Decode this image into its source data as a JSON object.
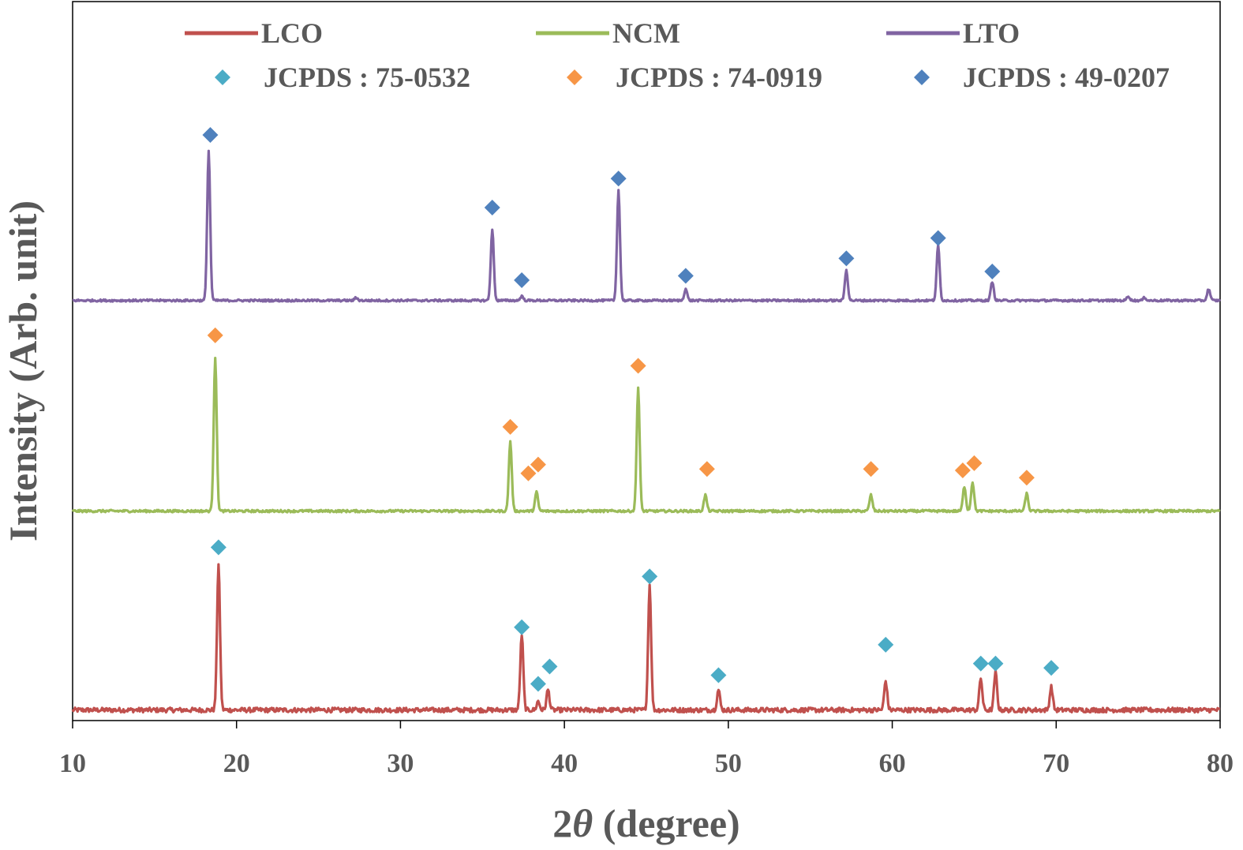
{
  "chart_data": {
    "type": "line",
    "xlabel_prefix": "2",
    "xlabel_symbol": "θ",
    "xlabel_suffix": " (degree)",
    "ylabel": "Intensity (Arb. unit)",
    "xlim": [
      10,
      80
    ],
    "x_ticks": [
      10,
      20,
      30,
      40,
      50,
      60,
      70,
      80
    ],
    "y_ticks_shown": false,
    "grid": false,
    "legend_position": "top",
    "intensity_units": "relative, stacked with vertical offset",
    "series": [
      {
        "name": "LCO",
        "color": "#c0504d",
        "offset": 0,
        "baseline": 4,
        "noise": 1.6,
        "peaks": [
          {
            "x": 18.9,
            "h": 100
          },
          {
            "x": 37.4,
            "h": 52
          },
          {
            "x": 38.4,
            "h": 6
          },
          {
            "x": 39.0,
            "h": 14
          },
          {
            "x": 45.2,
            "h": 86
          },
          {
            "x": 49.4,
            "h": 14
          },
          {
            "x": 59.6,
            "h": 20
          },
          {
            "x": 65.4,
            "h": 22
          },
          {
            "x": 66.3,
            "h": 26
          },
          {
            "x": 69.7,
            "h": 16
          }
        ]
      },
      {
        "name": "NCM",
        "color": "#9bbb59",
        "offset": 140,
        "baseline": 1,
        "noise": 0.8,
        "peaks": [
          {
            "x": 18.7,
            "h": 106
          },
          {
            "x": 36.7,
            "h": 48
          },
          {
            "x": 38.3,
            "h": 13
          },
          {
            "x": 44.5,
            "h": 85
          },
          {
            "x": 48.6,
            "h": 11
          },
          {
            "x": 58.7,
            "h": 11
          },
          {
            "x": 64.4,
            "h": 17
          },
          {
            "x": 64.9,
            "h": 20
          },
          {
            "x": 68.2,
            "h": 12
          }
        ]
      },
      {
        "name": "LTO",
        "color": "#8064a2",
        "offset": 282,
        "baseline": 4,
        "noise": 0.7,
        "peaks": [
          {
            "x": 18.3,
            "h": 103
          },
          {
            "x": 27.3,
            "h": 2
          },
          {
            "x": 35.6,
            "h": 49
          },
          {
            "x": 37.4,
            "h": 3
          },
          {
            "x": 43.3,
            "h": 76
          },
          {
            "x": 47.4,
            "h": 8
          },
          {
            "x": 57.2,
            "h": 21
          },
          {
            "x": 62.8,
            "h": 38
          },
          {
            "x": 66.1,
            "h": 13
          },
          {
            "x": 74.4,
            "h": 3
          },
          {
            "x": 75.4,
            "h": 2
          },
          {
            "x": 79.3,
            "h": 8
          }
        ]
      }
    ],
    "reference_markers": [
      {
        "name": "JCPDS : 75-0532",
        "color": "#4bacc6",
        "points": [
          {
            "x": 18.9,
            "y": 116
          },
          {
            "x": 37.4,
            "y": 61
          },
          {
            "x": 38.4,
            "y": 22
          },
          {
            "x": 39.1,
            "y": 34
          },
          {
            "x": 45.2,
            "y": 96
          },
          {
            "x": 49.4,
            "y": 28
          },
          {
            "x": 59.6,
            "y": 49
          },
          {
            "x": 65.4,
            "y": 36
          },
          {
            "x": 66.3,
            "y": 36
          },
          {
            "x": 69.7,
            "y": 33
          }
        ]
      },
      {
        "name": "JCPDS : 74-0919",
        "color": "#f79646",
        "points": [
          {
            "x": 18.7,
            "y": 262
          },
          {
            "x": 36.7,
            "y": 199
          },
          {
            "x": 37.8,
            "y": 167
          },
          {
            "x": 38.4,
            "y": 173
          },
          {
            "x": 44.5,
            "y": 241
          },
          {
            "x": 48.7,
            "y": 170
          },
          {
            "x": 58.7,
            "y": 170
          },
          {
            "x": 64.3,
            "y": 169
          },
          {
            "x": 65.0,
            "y": 174
          },
          {
            "x": 68.2,
            "y": 164
          }
        ]
      },
      {
        "name": "JCPDS : 49-0207",
        "color": "#4f81bd",
        "points": [
          {
            "x": 18.4,
            "y": 400
          },
          {
            "x": 35.6,
            "y": 350
          },
          {
            "x": 37.4,
            "y": 300
          },
          {
            "x": 43.3,
            "y": 370
          },
          {
            "x": 47.4,
            "y": 303
          },
          {
            "x": 57.2,
            "y": 315
          },
          {
            "x": 62.8,
            "y": 329
          },
          {
            "x": 66.1,
            "y": 306
          }
        ]
      }
    ]
  }
}
